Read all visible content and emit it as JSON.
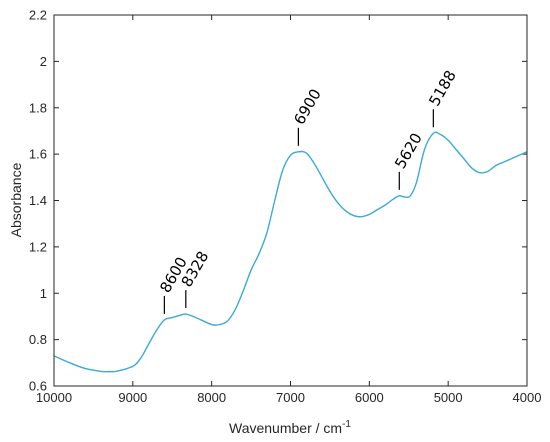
{
  "chart_data": {
    "type": "line",
    "title": "",
    "xlabel": "Wavenumber / cm",
    "xlabel_sup": "-1",
    "ylabel": "Absorbance",
    "xlim": [
      10000,
      4000
    ],
    "ylim": [
      0.6,
      2.2
    ],
    "x_reversed": true,
    "grid": false,
    "legend": "none",
    "x_ticks": [
      10000,
      9000,
      8000,
      7000,
      6000,
      5000,
      4000
    ],
    "x_tick_labels": [
      "10000",
      "9000",
      "8000",
      "7000",
      "6000",
      "5000",
      "4000"
    ],
    "y_ticks": [
      0.6,
      0.8,
      1.0,
      1.2,
      1.4,
      1.6,
      1.8,
      2.0,
      2.2
    ],
    "y_tick_labels": [
      "0.6",
      "0.8",
      "1",
      "1.2",
      "1.4",
      "1.6",
      "1.8",
      "2",
      "2.2"
    ],
    "line_color": "#3BAAD8",
    "series": [
      {
        "x": [
          10000,
          9800,
          9600,
          9400,
          9300,
          9200,
          9000,
          8900,
          8800,
          8700,
          8600,
          8500,
          8400,
          8328,
          8200,
          8000,
          7900,
          7800,
          7700,
          7600,
          7500,
          7400,
          7300,
          7200,
          7100,
          7000,
          6900,
          6800,
          6700,
          6600,
          6500,
          6400,
          6300,
          6200,
          6100,
          6000,
          5900,
          5800,
          5700,
          5620,
          5550,
          5480,
          5400,
          5300,
          5188,
          5100,
          5000,
          4900,
          4800,
          4700,
          4600,
          4500,
          4400,
          4300,
          4200,
          4100,
          4000
        ],
        "y": [
          0.73,
          0.7,
          0.675,
          0.663,
          0.662,
          0.664,
          0.685,
          0.72,
          0.78,
          0.84,
          0.885,
          0.895,
          0.905,
          0.91,
          0.895,
          0.865,
          0.865,
          0.88,
          0.93,
          1.01,
          1.1,
          1.17,
          1.26,
          1.4,
          1.53,
          1.595,
          1.61,
          1.605,
          1.56,
          1.5,
          1.44,
          1.39,
          1.355,
          1.335,
          1.33,
          1.34,
          1.36,
          1.38,
          1.405,
          1.42,
          1.415,
          1.42,
          1.48,
          1.62,
          1.69,
          1.685,
          1.66,
          1.62,
          1.58,
          1.54,
          1.52,
          1.525,
          1.55,
          1.565,
          1.58,
          1.595,
          1.61
        ]
      }
    ],
    "annotations": [
      {
        "label": "8600",
        "x": 8600,
        "y": 0.885
      },
      {
        "label": "8328",
        "x": 8328,
        "y": 0.91
      },
      {
        "label": "6900",
        "x": 6900,
        "y": 1.61
      },
      {
        "label": "5620",
        "x": 5620,
        "y": 1.42
      },
      {
        "label": "5188",
        "x": 5188,
        "y": 1.69
      }
    ]
  }
}
